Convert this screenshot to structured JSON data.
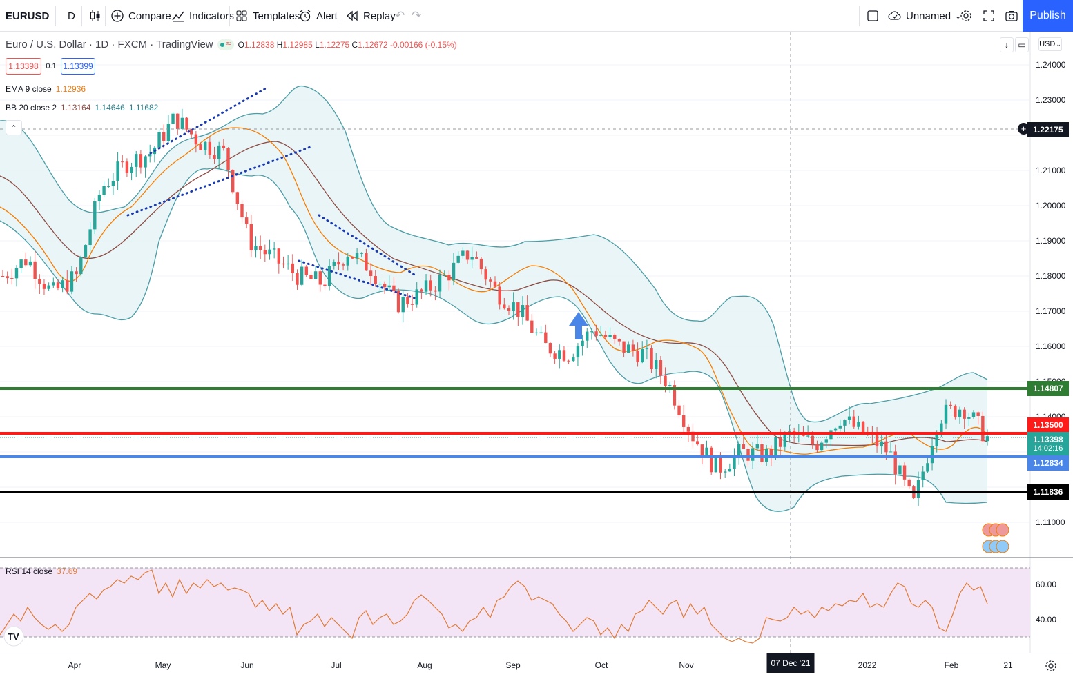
{
  "toolbar": {
    "symbol": "EURUSD",
    "interval": "D",
    "compare": "Compare",
    "indicators": "Indicators",
    "templates": "Templates",
    "alert": "Alert",
    "replay": "Replay",
    "layout_name": "Unnamed",
    "publish": "Publish"
  },
  "legend": {
    "title": "Euro / U.S. Dollar · 1D · FXCM · TradingView",
    "o_label": "O",
    "o": "1.12838",
    "h_label": "H",
    "h": "1.12985",
    "l_label": "L",
    "l": "1.12275",
    "c_label": "C",
    "c": "1.12672",
    "change": "-0.00166 (-0.15%)",
    "sell": "1.13398",
    "spread": "0.1",
    "buy": "1.13399",
    "ema_label": "EMA 9 close",
    "ema_value": "1.12936",
    "bb_label": "BB 20 close 2",
    "bb_v1": "1.13164",
    "bb_v2": "1.14646",
    "bb_v3": "1.11682",
    "rsi_label": "RSI 14 close",
    "rsi_value": "37.69"
  },
  "currency": "USD",
  "price_axis": [
    "1.24000",
    "1.23000",
    "1.21000",
    "1.20000",
    "1.19000",
    "1.18000",
    "1.17000",
    "1.16000",
    "1.15000",
    "1.14000",
    "1.11000"
  ],
  "rsi_axis": [
    "60.00",
    "40.00"
  ],
  "price_labels": {
    "crosshair": "1.22175",
    "green": "1.14807",
    "red": "1.13500",
    "last": "1.13398",
    "countdown": "14:02:16",
    "blue": "1.12834",
    "black": "1.11836"
  },
  "time_axis": {
    "labels": [
      "Apr",
      "May",
      "Jun",
      "Jul",
      "Aug",
      "Sep",
      "Oct",
      "Nov",
      "2022",
      "Feb",
      "21"
    ],
    "highlight": "07 Dec '21"
  },
  "colors": {
    "green_line": "#2e7d32",
    "red_line": "#ff1a1a",
    "blue_line": "#4a86e8",
    "black_line": "#000000",
    "up_candle": "#26a69a",
    "down_candle": "#ef5350",
    "ema": "#f57c00",
    "bb_fill": "#e8f4f6",
    "rsi_bg": "#f3e5f5"
  },
  "chart_data": {
    "type": "candlestick",
    "title": "Euro / U.S. Dollar · 1D · FXCM · TradingView",
    "x_months": [
      "Apr",
      "May",
      "Jun",
      "Jul",
      "Aug",
      "Sep",
      "Oct",
      "Nov",
      "Dec",
      "2022",
      "Feb"
    ],
    "close_by_period": [
      1.18,
      1.185,
      1.175,
      1.18,
      1.205,
      1.212,
      1.215,
      1.225,
      1.218,
      1.215,
      1.19,
      1.185,
      1.18,
      1.178,
      1.187,
      1.182,
      1.172,
      1.175,
      1.18,
      1.187,
      1.176,
      1.17,
      1.16,
      1.158,
      1.165,
      1.16,
      1.158,
      1.15,
      1.135,
      1.125,
      1.13,
      1.129,
      1.135,
      1.132,
      1.14,
      1.135,
      1.13,
      1.115,
      1.14,
      1.143,
      1.134
    ],
    "horizontal_levels": [
      1.14807,
      1.135,
      1.12834,
      1.11836
    ],
    "ylim": [
      1.1,
      1.245
    ],
    "rsi": {
      "label": "RSI 14 close",
      "last": 37.69,
      "bands": [
        30,
        70
      ],
      "ylim": [
        20,
        80
      ]
    }
  }
}
